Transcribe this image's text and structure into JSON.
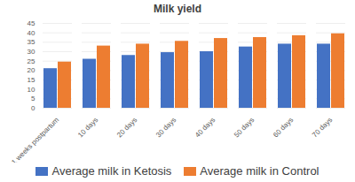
{
  "chart_data": {
    "type": "bar",
    "title": "Milk yield",
    "categories": [
      "1 weeks postpartum",
      "10 days",
      "20 days",
      "30 days",
      "40 days",
      "50 days",
      "60 days",
      "70 days"
    ],
    "series": [
      {
        "name": "Average milk in Ketosis",
        "color": "#4472c4",
        "values": [
          21,
          26,
          28,
          29.5,
          30,
          32.5,
          34,
          34
        ]
      },
      {
        "name": "Average milk in Control",
        "color": "#ed7d31",
        "values": [
          24.5,
          33,
          34,
          35.5,
          37,
          37.5,
          38.5,
          39.5
        ]
      }
    ],
    "ylim": [
      0,
      45
    ],
    "yticks": [
      0,
      5,
      10,
      15,
      20,
      25,
      30,
      35,
      40,
      45
    ],
    "grid": true,
    "legend": "bottom"
  }
}
